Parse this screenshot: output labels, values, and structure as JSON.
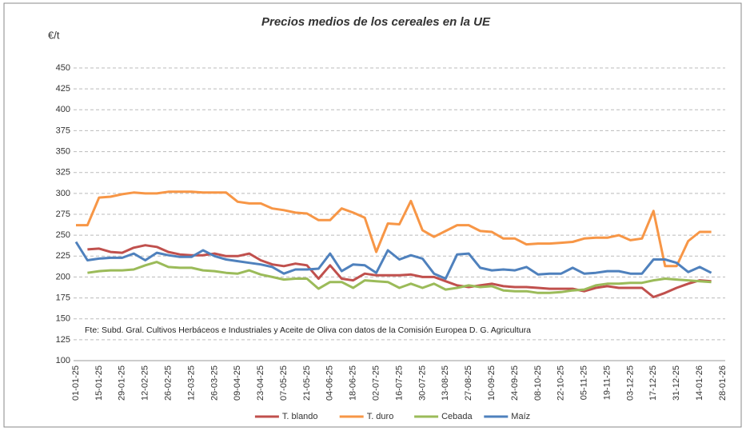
{
  "chart_data": {
    "type": "line",
    "title": "Precios medios de los cereales en la UE",
    "y_label": "€/t",
    "note": "Fte: Subd. Gral. Cultivos Herbáceos e Industriales y Aceite de Oliva con datos de la Comisión Europea D. G. Agricultura",
    "categories": [
      "01-01-25",
      null,
      "15-01-25",
      null,
      "29-01-25",
      null,
      "12-02-25",
      null,
      "26-02-25",
      null,
      "12-03-25",
      null,
      "26-03-25",
      null,
      "09-04-25",
      null,
      "23-04-25",
      null,
      "07-05-25",
      null,
      "21-05-25",
      null,
      "04-06-25",
      null,
      "18-06-25",
      null,
      "02-07-25",
      null,
      "16-07-25",
      null,
      "30-07-25",
      null,
      "13-08-25",
      null,
      "27-08-25",
      null,
      "10-09-25",
      null,
      "24-09-25",
      null,
      "08-10-25",
      null,
      "22-10-25",
      null,
      "05-11-25",
      null,
      "19-11-25",
      null,
      "03-12-25",
      null,
      "17-12-25",
      null,
      "31-12-25",
      null,
      "14-01-26",
      null,
      "28-01-26"
    ],
    "series": [
      {
        "name": "T. blando",
        "color": "#c0504d",
        "values": [
          null,
          233,
          234,
          230,
          229,
          235,
          238,
          236,
          230,
          227,
          226,
          226,
          228,
          225,
          225,
          228,
          220,
          215,
          213,
          216,
          214,
          198,
          214,
          198,
          196,
          204,
          202,
          202,
          202,
          203,
          200,
          200,
          195,
          190,
          188,
          190,
          192,
          189,
          188,
          188,
          187,
          186,
          186,
          186,
          183,
          187,
          189,
          187,
          187,
          187,
          176,
          181,
          187,
          192,
          196,
          195,
          null
        ]
      },
      {
        "name": "T. duro",
        "color": "#f79646",
        "values": [
          262,
          262,
          295,
          296,
          299,
          301,
          300,
          300,
          302,
          302,
          302,
          301,
          301,
          301,
          290,
          288,
          288,
          282,
          280,
          277,
          276,
          268,
          268,
          282,
          277,
          271,
          230,
          264,
          263,
          291,
          256,
          248,
          255,
          262,
          262,
          255,
          254,
          246,
          246,
          239,
          240,
          240,
          241,
          242,
          246,
          247,
          247,
          250,
          244,
          246,
          279,
          213,
          213,
          243,
          254,
          254,
          null
        ]
      },
      {
        "name": "Cebada",
        "color": "#9bbb59",
        "values": [
          null,
          205,
          207,
          208,
          208,
          209,
          214,
          218,
          212,
          211,
          211,
          208,
          207,
          205,
          204,
          208,
          203,
          200,
          197,
          198,
          198,
          186,
          194,
          194,
          187,
          196,
          195,
          194,
          187,
          192,
          187,
          192,
          185,
          187,
          190,
          188,
          189,
          184,
          183,
          183,
          181,
          181,
          182,
          184,
          185,
          190,
          192,
          192,
          193,
          193,
          196,
          198,
          197,
          196,
          195,
          194,
          null
        ]
      },
      {
        "name": "Maíz",
        "color": "#4f81bd",
        "values": [
          242,
          220,
          222,
          223,
          223,
          228,
          220,
          229,
          226,
          224,
          224,
          232,
          225,
          221,
          219,
          217,
          215,
          212,
          204,
          209,
          209,
          210,
          228,
          207,
          215,
          214,
          205,
          232,
          221,
          226,
          222,
          204,
          198,
          227,
          228,
          211,
          208,
          209,
          208,
          212,
          203,
          204,
          204,
          211,
          204,
          205,
          207,
          207,
          204,
          204,
          221,
          221,
          217,
          206,
          212,
          205,
          null
        ]
      }
    ],
    "ylim": [
      100,
      450
    ],
    "yticks": [
      100,
      125,
      150,
      175,
      200,
      225,
      250,
      275,
      300,
      325,
      350,
      375,
      400,
      425,
      450
    ],
    "grid": true,
    "legend": "bottom"
  }
}
